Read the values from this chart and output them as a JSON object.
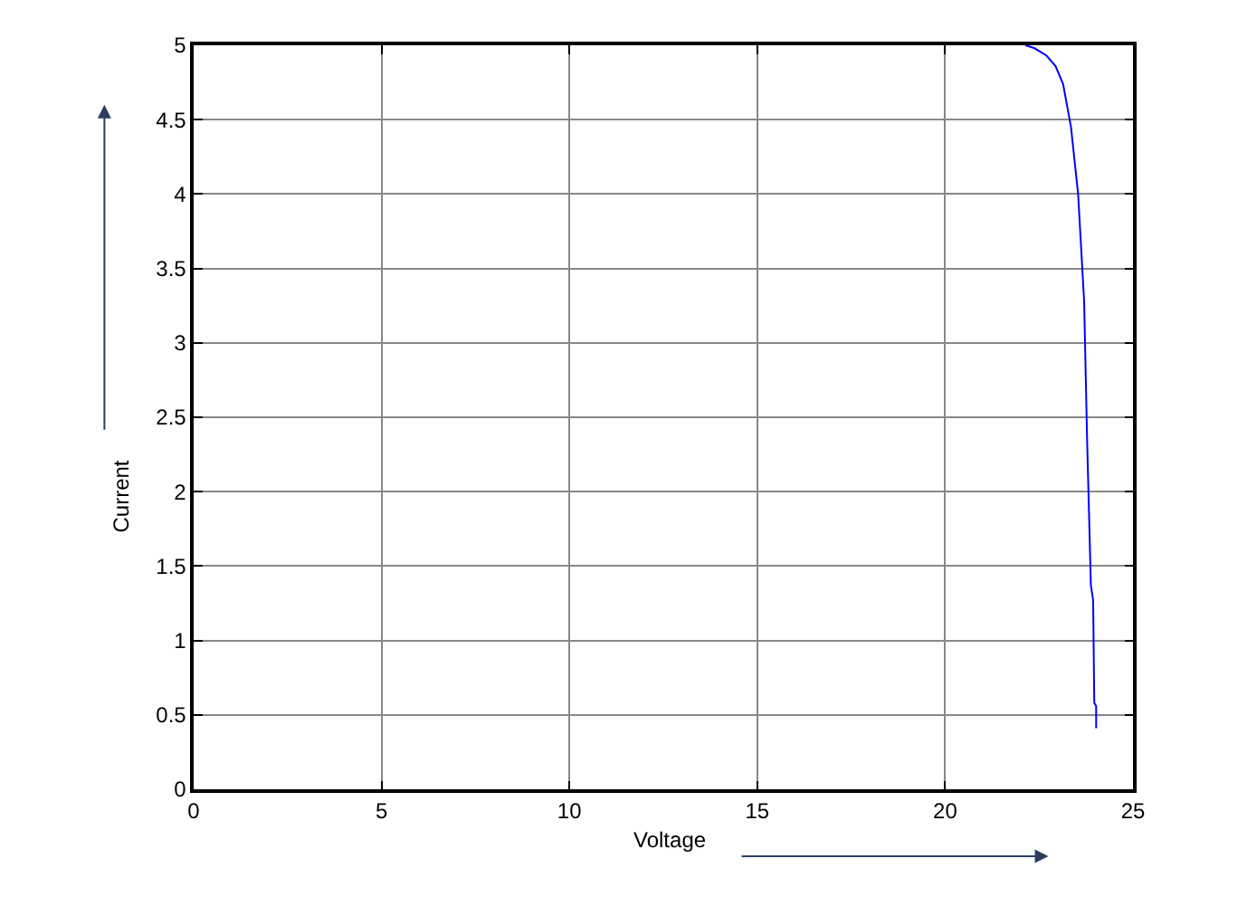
{
  "chart_data": {
    "type": "line",
    "xlabel": "Voltage",
    "ylabel": "Current",
    "x": [
      22.14,
      22.38,
      22.7,
      22.94,
      23.14,
      23.35,
      23.54,
      23.7,
      23.78,
      23.88,
      23.94,
      23.97,
      24.02,
      24.02
    ],
    "series": [
      {
        "color": "#0000ff",
        "values": [
          5,
          4.98,
          4.93,
          4.86,
          4.74,
          4.45,
          4.0,
          3.28,
          2.34,
          1.37,
          1.27,
          0.58,
          0.56,
          0.41
        ]
      }
    ],
    "xlim": [
      0,
      25
    ],
    "xticks": [
      0,
      5,
      10,
      15,
      20,
      25
    ],
    "ylim": [
      0,
      5
    ],
    "yticks": [
      0,
      0.5,
      1,
      1.5,
      2,
      2.5,
      3,
      3.5,
      4,
      4.5,
      5
    ],
    "grid": true,
    "legend": false,
    "marker": "none",
    "line_style": "solid"
  }
}
